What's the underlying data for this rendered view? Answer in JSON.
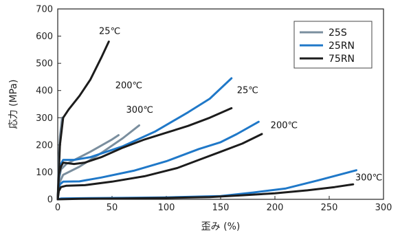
{
  "chart_data": {
    "type": "line",
    "xlabel": "歪み (%)",
    "ylabel": "応力 (MPa)",
    "xlim": [
      0,
      300
    ],
    "ylim": [
      0,
      700
    ],
    "xticks": [
      0,
      50,
      100,
      150,
      200,
      250,
      300
    ],
    "yticks": [
      0,
      100,
      200,
      300,
      400,
      500,
      600,
      700
    ],
    "grid": false,
    "legend_position": "top-right",
    "series": [
      {
        "name": "25S",
        "color": "#7a8e9e",
        "lines": [
          {
            "temp": "25℃",
            "points": [
              [
                0,
                0
              ],
              [
                1,
                150
              ],
              [
                2,
                230
              ],
              [
                4,
                300
              ]
            ]
          },
          {
            "temp": "200℃",
            "points": [
              [
                0,
                0
              ],
              [
                1,
                70
              ],
              [
                3,
                110
              ],
              [
                8,
                130
              ],
              [
                30,
                175
              ],
              [
                50,
                220
              ],
              [
                56,
                236
              ]
            ]
          },
          {
            "temp": "300℃",
            "points": [
              [
                0,
                0
              ],
              [
                1,
                40
              ],
              [
                2,
                65
              ],
              [
                5,
                90
              ],
              [
                20,
                120
              ],
              [
                40,
                170
              ],
              [
                60,
                225
              ],
              [
                75,
                272
              ]
            ]
          }
        ]
      },
      {
        "name": "25RN",
        "color": "#1f78c8",
        "lines": [
          {
            "temp": "25℃",
            "points": [
              [
                0,
                0
              ],
              [
                1,
                80
              ],
              [
                3,
                130
              ],
              [
                5,
                145
              ],
              [
                15,
                145
              ],
              [
                30,
                155
              ],
              [
                60,
                195
              ],
              [
                90,
                250
              ],
              [
                120,
                320
              ],
              [
                140,
                370
              ],
              [
                160,
                445
              ]
            ]
          },
          {
            "temp": "200℃",
            "points": [
              [
                0,
                0
              ],
              [
                1,
                40
              ],
              [
                2,
                55
              ],
              [
                5,
                65
              ],
              [
                20,
                66
              ],
              [
                40,
                80
              ],
              [
                70,
                105
              ],
              [
                100,
                140
              ],
              [
                130,
                185
              ],
              [
                150,
                210
              ],
              [
                165,
                240
              ],
              [
                185,
                285
              ]
            ]
          },
          {
            "temp": "300℃",
            "points": [
              [
                0,
                0
              ],
              [
                3,
                3
              ],
              [
                20,
                4
              ],
              [
                50,
                5
              ],
              [
                100,
                7
              ],
              [
                150,
                12
              ],
              [
                180,
                25
              ],
              [
                210,
                40
              ],
              [
                240,
                70
              ],
              [
                275,
                107
              ]
            ]
          }
        ]
      },
      {
        "name": "75RN",
        "color": "#1c1c1c",
        "lines": [
          {
            "temp": "25℃",
            "points": [
              [
                0,
                0
              ],
              [
                2,
                200
              ],
              [
                5,
                300
              ],
              [
                10,
                330
              ],
              [
                20,
                380
              ],
              [
                30,
                440
              ],
              [
                40,
                520
              ],
              [
                47,
                580
              ]
            ]
          },
          {
            "temp": "200℃",
            "points": [
              [
                0,
                0
              ],
              [
                1,
                90
              ],
              [
                3,
                120
              ],
              [
                5,
                135
              ],
              [
                15,
                130
              ],
              [
                25,
                135
              ],
              [
                40,
                155
              ],
              [
                60,
                190
              ],
              [
                80,
                220
              ],
              [
                100,
                245
              ],
              [
                120,
                270
              ],
              [
                140,
                300
              ],
              [
                160,
                335
              ]
            ]
          },
          {
            "temp": "300℃",
            "points": [
              [
                0,
                0
              ],
              [
                1,
                30
              ],
              [
                3,
                45
              ],
              [
                8,
                50
              ],
              [
                25,
                52
              ],
              [
                50,
                65
              ],
              [
                80,
                85
              ],
              [
                110,
                115
              ],
              [
                130,
                145
              ],
              [
                150,
                175
              ],
              [
                170,
                205
              ],
              [
                188,
                240
              ]
            ]
          },
          {
            "temp": "",
            "points": [
              [
                0,
                0
              ],
              [
                20,
                2
              ],
              [
                60,
                3
              ],
              [
                100,
                5
              ],
              [
                140,
                8
              ],
              [
                170,
                15
              ],
              [
                200,
                22
              ],
              [
                230,
                33
              ],
              [
                255,
                45
              ],
              [
                272,
                55
              ]
            ]
          }
        ]
      }
    ],
    "annotations": [
      {
        "text": "25℃",
        "x": 38,
        "y": 608
      },
      {
        "text": "200℃",
        "x": 53,
        "y": 408
      },
      {
        "text": "300℃",
        "x": 63,
        "y": 318
      },
      {
        "text": "25℃",
        "x": 165,
        "y": 390
      },
      {
        "text": "200℃",
        "x": 196,
        "y": 262
      },
      {
        "text": "300℃",
        "x": 274,
        "y": 70
      }
    ]
  }
}
